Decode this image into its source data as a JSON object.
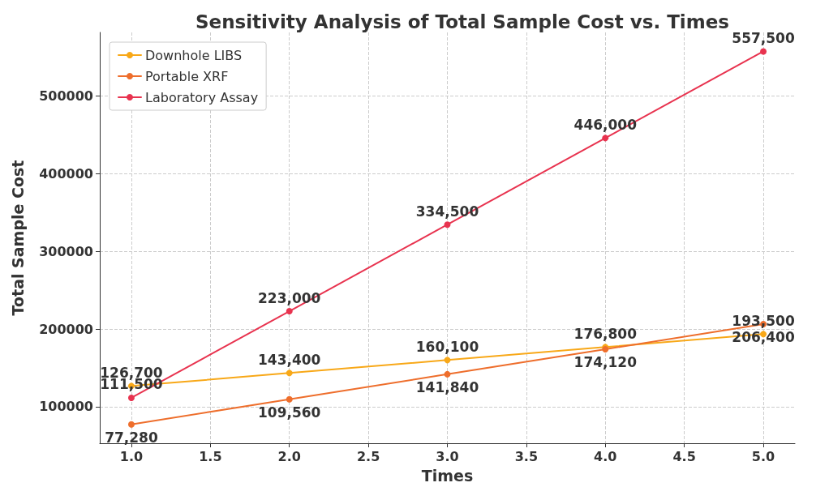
{
  "chart_data": {
    "type": "line",
    "title": "Sensitivity Analysis of Total Sample Cost vs. Times",
    "xlabel": "Times",
    "ylabel": "Total Sample Cost",
    "x": [
      1,
      2,
      3,
      4,
      5
    ],
    "series": [
      {
        "name": "Downhole LIBS",
        "color": "#f8a818",
        "values": [
          126700,
          143400,
          160100,
          176800,
          193500
        ],
        "value_labels": [
          "126,700",
          "143,400",
          "160,100",
          "176,800",
          "193,500"
        ]
      },
      {
        "name": "Portable XRF",
        "color": "#ee6e2c",
        "values": [
          77280,
          109560,
          141840,
          174120,
          206400
        ],
        "value_labels": [
          "77,280",
          "109,560",
          "141,840",
          "174,120",
          "206,400"
        ]
      },
      {
        "name": "Laboratory Assay",
        "color": "#e8334f",
        "values": [
          111500,
          223000,
          334500,
          446000,
          557500
        ],
        "value_labels": [
          "111,500",
          "223,000",
          "334,500",
          "446,000",
          "557,500"
        ]
      }
    ],
    "xlim": [
      0.8,
      5.2
    ],
    "xticks": [
      {
        "value": 1,
        "label": "1.0"
      },
      {
        "value": 1.5,
        "label": "1.5"
      },
      {
        "value": 2,
        "label": "2.0"
      },
      {
        "value": 2.5,
        "label": "2.5"
      },
      {
        "value": 3,
        "label": "3.0"
      },
      {
        "value": 3.5,
        "label": "3.5"
      },
      {
        "value": 4,
        "label": "4.0"
      },
      {
        "value": 4.5,
        "label": "4.5"
      },
      {
        "value": 5,
        "label": "5.0"
      }
    ],
    "ylim": [
      53000,
      582000
    ],
    "yticks": [
      100000,
      200000,
      300000,
      400000,
      500000
    ],
    "grid": true,
    "legend": "top left",
    "marker": "circle",
    "line_style": "solid"
  }
}
